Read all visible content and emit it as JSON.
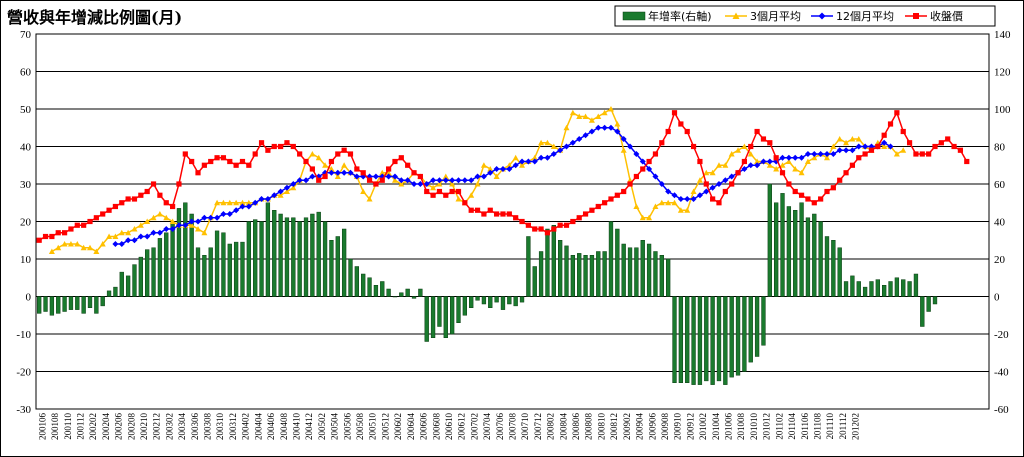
{
  "chart_data": {
    "type": "bar+line",
    "title": "營收與年增減比例圖(月)",
    "left_axis": {
      "ylim": [
        -30,
        70
      ],
      "ticks": [
        -30,
        -20,
        -10,
        0,
        10,
        20,
        30,
        40,
        50,
        60,
        70
      ]
    },
    "right_axis": {
      "ylim": [
        -60,
        140
      ],
      "ticks": [
        -60,
        -40,
        -20,
        0,
        20,
        40,
        60,
        80,
        100,
        120,
        140
      ]
    },
    "x_tick_labels": [
      "200106",
      "200108",
      "200110",
      "200112",
      "200202",
      "200204",
      "200206",
      "200208",
      "200210",
      "200212",
      "200302",
      "200304",
      "200306",
      "200308",
      "200310",
      "200312",
      "200402",
      "200404",
      "200406",
      "200408",
      "200410",
      "200412",
      "200502",
      "200504",
      "200506",
      "200508",
      "200510",
      "200512",
      "200602",
      "200604",
      "200606",
      "200608",
      "200610",
      "200612",
      "200702",
      "200704",
      "200706",
      "200708",
      "200710",
      "200712",
      "200802",
      "200804",
      "200806",
      "200808",
      "200810",
      "200812",
      "200902",
      "200904",
      "200906",
      "200908",
      "200910",
      "200912",
      "201002",
      "201004",
      "201006",
      "201008",
      "201010",
      "201012",
      "201102",
      "201104",
      "201106",
      "201108",
      "201110",
      "201112",
      "201202"
    ],
    "legend": [
      {
        "name": "年增率(右軸)",
        "color": "#1a7a2e",
        "marker": "bar"
      },
      {
        "name": "3個月平均",
        "color": "#ffc000",
        "marker": "triangle"
      },
      {
        "name": "12個月平均",
        "color": "#0000ff",
        "marker": "diamond"
      },
      {
        "name": "收盤價",
        "color": "#ff0000",
        "marker": "square"
      }
    ],
    "legend_position": "top-right",
    "grid": true,
    "series": [
      {
        "name": "年增率(右軸)",
        "axis": "right",
        "type": "bar",
        "start_index": 0,
        "values": [
          -9,
          -8,
          -10,
          -9,
          -8,
          -7,
          -7,
          -9,
          -6,
          -9,
          -5,
          3,
          5,
          13,
          11,
          17,
          21,
          25,
          26,
          31,
          34,
          40,
          47,
          50,
          44,
          26,
          22,
          26,
          35,
          34,
          28,
          29,
          29,
          40,
          41,
          40,
          50,
          46,
          44,
          42,
          42,
          40,
          42,
          44,
          45,
          40,
          30,
          32,
          36,
          20,
          16,
          12,
          10,
          6,
          8,
          4,
          0,
          2,
          4,
          -1,
          4,
          -24,
          -22,
          -16,
          -22,
          -20,
          -14,
          -10,
          -6,
          -2,
          -4,
          -6,
          -3,
          -7,
          -4,
          -5,
          -3,
          32,
          16,
          24,
          36,
          38,
          30,
          27,
          22,
          23,
          22,
          22,
          24,
          24,
          40,
          36,
          28,
          26,
          26,
          30,
          28,
          24,
          22,
          20,
          -46,
          -46,
          -46,
          -47,
          -47,
          -45,
          -47,
          -45,
          -47,
          -43,
          -42,
          -40,
          -35,
          -32,
          -26,
          60,
          50,
          55,
          48,
          46,
          50,
          42,
          44,
          40,
          32,
          30,
          26,
          8,
          11,
          8,
          5,
          8,
          9,
          6,
          8,
          10,
          9,
          8,
          12,
          -16,
          -8,
          -4
        ]
      },
      {
        "name": "3個月平均",
        "axis": "left",
        "type": "line",
        "start_index": 2,
        "values": [
          12,
          13,
          14,
          14,
          14,
          13,
          13,
          12,
          14,
          16,
          16,
          17,
          17,
          18,
          19,
          20,
          21,
          22,
          21,
          20,
          19,
          19,
          19,
          18,
          17,
          21,
          25,
          25,
          25,
          25,
          25,
          25,
          25,
          26,
          26,
          27,
          27,
          28,
          29,
          31,
          36,
          38,
          37,
          35,
          34,
          32,
          35,
          33,
          32,
          28,
          26,
          30,
          33,
          33,
          31,
          30,
          31,
          33,
          32,
          30,
          29,
          30,
          32,
          30,
          26,
          25,
          27,
          30,
          35,
          34,
          32,
          34,
          35,
          37,
          35,
          36,
          37,
          41,
          41,
          40,
          39,
          45,
          49,
          48,
          48,
          47,
          48,
          49,
          50,
          46,
          39,
          31,
          24,
          21,
          21,
          24,
          25,
          25,
          25,
          23,
          23,
          28,
          31,
          33,
          33,
          35,
          35,
          38,
          39,
          40,
          38,
          36,
          36,
          35,
          34,
          35,
          36,
          34,
          33,
          36,
          37,
          38,
          37,
          40,
          42,
          41,
          42,
          42,
          40,
          39,
          41,
          40,
          40,
          38,
          39
        ]
      },
      {
        "name": "12個月平均",
        "axis": "left",
        "type": "line",
        "start_index": 12,
        "values": [
          14,
          14,
          15,
          15,
          16,
          16,
          17,
          17,
          18,
          18,
          19,
          19,
          20,
          20,
          21,
          21,
          21,
          22,
          22,
          23,
          24,
          24,
          25,
          26,
          26,
          27,
          28,
          29,
          30,
          31,
          31,
          32,
          32,
          33,
          33,
          33,
          33,
          33,
          32,
          32,
          32,
          32,
          32,
          32,
          32,
          31,
          31,
          30,
          30,
          30,
          31,
          31,
          31,
          31,
          31,
          31,
          31,
          32,
          32,
          33,
          34,
          34,
          34,
          35,
          36,
          36,
          36,
          37,
          37,
          38,
          39,
          40,
          41,
          42,
          43,
          44,
          45,
          45,
          45,
          44,
          42,
          40,
          38,
          36,
          34,
          32,
          30,
          28,
          27,
          26,
          26,
          26,
          27,
          28,
          29,
          30,
          31,
          32,
          33,
          34,
          35,
          35,
          36,
          36,
          36,
          37,
          37,
          37,
          37,
          38,
          38,
          38,
          38,
          38,
          39,
          39,
          39,
          40,
          40,
          40,
          40,
          41,
          40
        ]
      },
      {
        "name": "收盤價",
        "axis": "left",
        "type": "line",
        "start_index": 0,
        "values": [
          15,
          16,
          16,
          17,
          17,
          18,
          19,
          19,
          20,
          21,
          22,
          23,
          24,
          25,
          26,
          26,
          27,
          28,
          30,
          27,
          25,
          24,
          30,
          38,
          36,
          33,
          35,
          36,
          37,
          37,
          36,
          35,
          36,
          35,
          38,
          41,
          39,
          40,
          40,
          41,
          40,
          38,
          36,
          34,
          31,
          32,
          36,
          38,
          39,
          38,
          34,
          33,
          31,
          30,
          31,
          34,
          36,
          37,
          35,
          33,
          32,
          28,
          27,
          28,
          27,
          28,
          28,
          25,
          23,
          23,
          22,
          23,
          22,
          22,
          22,
          21,
          20,
          19,
          18,
          18,
          17,
          18,
          19,
          19,
          20,
          21,
          22,
          23,
          24,
          25,
          26,
          27,
          28,
          30,
          32,
          34,
          36,
          38,
          41,
          44,
          49,
          46,
          44,
          40,
          36,
          30,
          26,
          25,
          28,
          30,
          33,
          36,
          40,
          44,
          42,
          41,
          37,
          33,
          30,
          28,
          27,
          26,
          25,
          26,
          28,
          29,
          31,
          33,
          35,
          37,
          38,
          39,
          40,
          43,
          46,
          49,
          44,
          41,
          38,
          38,
          38,
          40,
          41,
          42,
          40,
          39,
          36
        ]
      }
    ]
  }
}
